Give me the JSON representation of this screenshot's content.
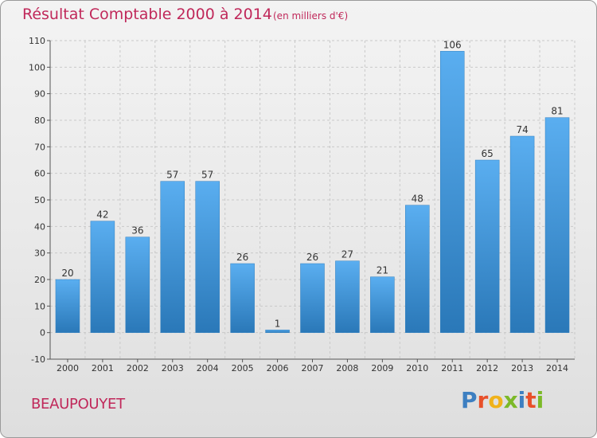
{
  "title": "Résultat Comptable 2000 à 2014",
  "subtitle": "(en milliers d'€)",
  "commune": "BEAUPOUYET",
  "logo": {
    "letters": [
      "P",
      "r",
      "o",
      "x",
      "i",
      "t",
      "i"
    ],
    "colors": [
      "#3d7fc1",
      "#e8502a",
      "#f0b21a",
      "#7cb928",
      "#3d7fc1",
      "#e8502a",
      "#7cb928"
    ]
  },
  "colors": {
    "bar": "#3f96d8",
    "title": "#c0285a"
  },
  "chart_data": {
    "type": "bar",
    "title": "Résultat Comptable 2000 à 2014",
    "categories": [
      "2000",
      "2001",
      "2002",
      "2003",
      "2004",
      "2005",
      "2006",
      "2007",
      "2008",
      "2009",
      "2010",
      "2011",
      "2012",
      "2013",
      "2014"
    ],
    "values": [
      20,
      42,
      36,
      57,
      57,
      26,
      1,
      26,
      27,
      21,
      48,
      106,
      65,
      74,
      81
    ],
    "ylim": [
      -10,
      110
    ],
    "yticks": [
      -10,
      0,
      10,
      20,
      30,
      40,
      50,
      60,
      70,
      80,
      90,
      100,
      110
    ],
    "grid": true
  }
}
